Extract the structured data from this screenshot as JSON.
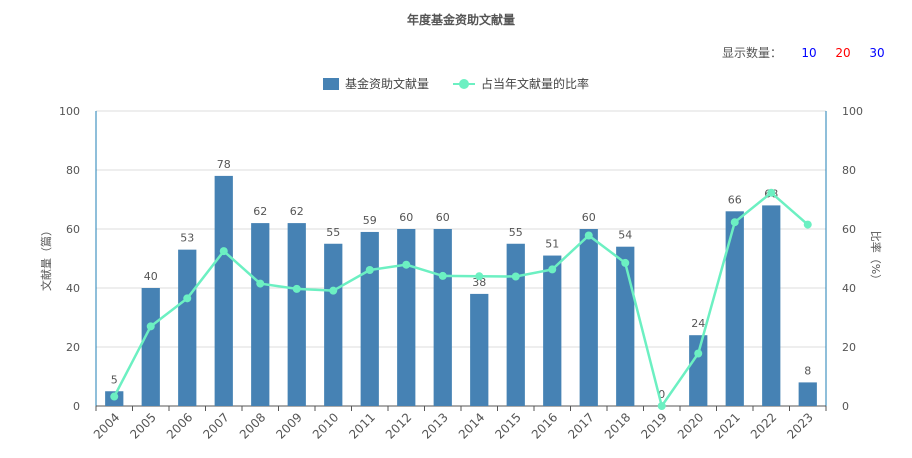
{
  "header": {
    "title": "年度基金资助文献量"
  },
  "count_switch": {
    "label": "显示数量：",
    "options": [
      {
        "label": "10",
        "color": "#0000ff"
      },
      {
        "label": "20",
        "color": "#ff0000"
      },
      {
        "label": "30",
        "color": "#0000ff"
      }
    ]
  },
  "legend": {
    "bar_label": "基金资助文献量",
    "line_label": "占当年文献量的比率"
  },
  "colors": {
    "bar": "#4682b4",
    "line": "#6cf0c2",
    "axis": "#1f7fb5",
    "grid": "#dddddd"
  },
  "chart_data": {
    "type": "bar",
    "categories": [
      "2004",
      "2005",
      "2006",
      "2007",
      "2008",
      "2009",
      "2010",
      "2011",
      "2012",
      "2013",
      "2014",
      "2015",
      "2016",
      "2017",
      "2018",
      "2019",
      "2020",
      "2021",
      "2022",
      "2023"
    ],
    "series": [
      {
        "name": "基金资助文献量",
        "type": "bar",
        "axis": "left",
        "values": [
          5,
          40,
          53,
          78,
          62,
          62,
          55,
          59,
          60,
          60,
          38,
          55,
          51,
          60,
          54,
          0,
          24,
          66,
          68,
          8
        ]
      },
      {
        "name": "占当年文献量的比率",
        "type": "line",
        "axis": "right",
        "values": [
          3.2,
          27.0,
          36.5,
          52.5,
          41.5,
          39.7,
          39.1,
          46.1,
          47.9,
          44.1,
          44.0,
          43.9,
          46.3,
          57.8,
          48.5,
          0,
          17.8,
          62.3,
          72.3,
          61.5
        ]
      }
    ],
    "ylabel": "文献量（篇）",
    "y2label": "比率（%）",
    "ylim": [
      0,
      100
    ],
    "y2lim": [
      0,
      100
    ],
    "yticks": [
      0,
      20,
      40,
      60,
      80,
      100
    ],
    "grid": true,
    "legend_position": "top-center"
  }
}
